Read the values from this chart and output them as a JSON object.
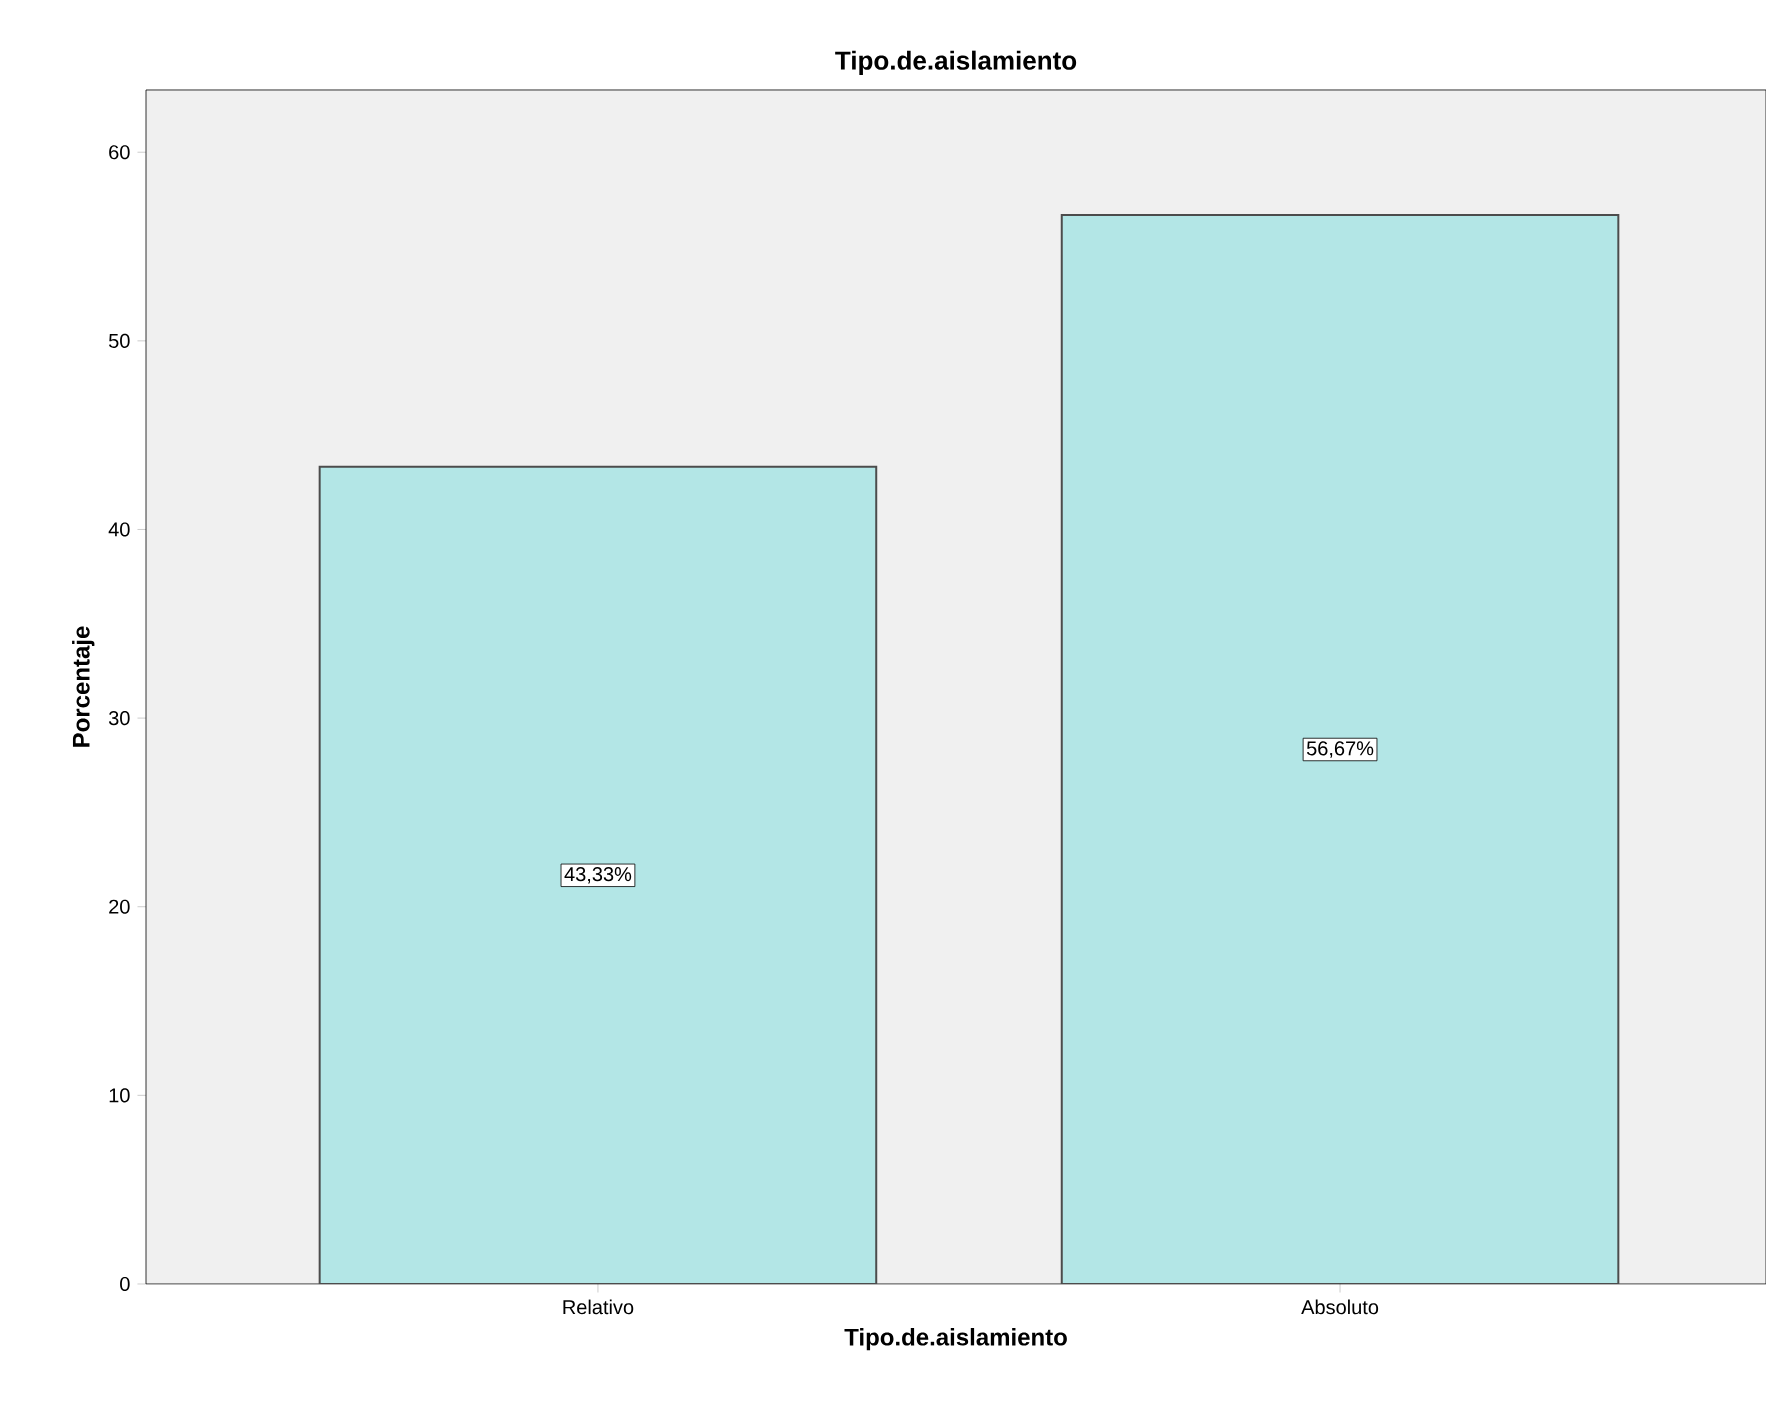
{
  "chart_data": {
    "type": "bar",
    "title": "Tipo.de.aislamiento",
    "xlabel": "Tipo.de.aislamiento",
    "ylabel": "Porcentaje",
    "categories": [
      "Relativo",
      "Absoluto"
    ],
    "values": [
      43.33,
      56.67
    ],
    "value_labels": [
      "43,33%",
      "56,67%"
    ],
    "color": "#b3e6e6",
    "ylim": [
      0,
      63.3
    ],
    "yticks": [
      0,
      10,
      20,
      30,
      40,
      50,
      60
    ]
  }
}
